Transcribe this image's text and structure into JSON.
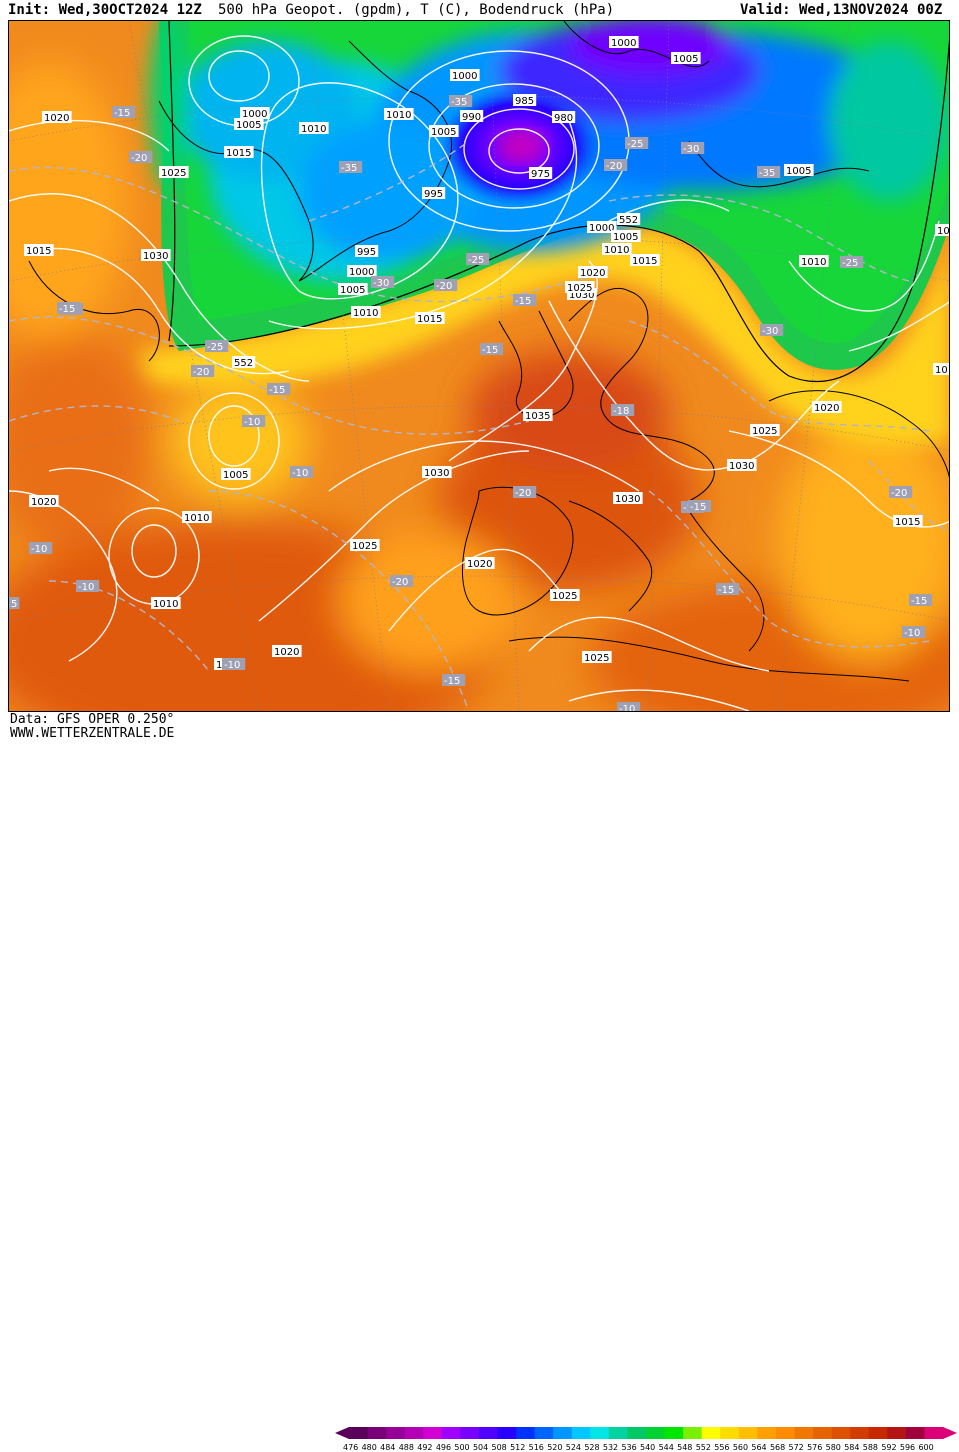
{
  "header": {
    "init": "Init: Wed,30OCT2024 12Z",
    "title": "500 hPa Geopot. (gpdm), T (C), Bodendruck (hPa)",
    "valid": "Valid: Wed,13NOV2024 00Z"
  },
  "footer": {
    "data_source": "Data: GFS OPER 0.250°",
    "website": "WWW.WETTERZENTRALE.DE"
  },
  "legend": {
    "ticks": [
      "476",
      "480",
      "484",
      "488",
      "492",
      "496",
      "500",
      "504",
      "508",
      "512",
      "516",
      "520",
      "524",
      "528",
      "532",
      "536",
      "540",
      "544",
      "548",
      "552",
      "556",
      "560",
      "564",
      "568",
      "572",
      "576",
      "580",
      "584",
      "588",
      "592",
      "596",
      "600"
    ],
    "colors": [
      "#5a005a",
      "#780078",
      "#960096",
      "#b400b4",
      "#d200d2",
      "#a000ff",
      "#7800ff",
      "#5000ff",
      "#2800ff",
      "#0032ff",
      "#0064ff",
      "#0096ff",
      "#00c8ff",
      "#00e6e6",
      "#00d2a0",
      "#00c864",
      "#00d232",
      "#00e600",
      "#78f000",
      "#ffff00",
      "#ffdc00",
      "#ffbe00",
      "#ffa000",
      "#ff8c00",
      "#f07800",
      "#e66400",
      "#dc5000",
      "#d23c00",
      "#c82800",
      "#b41414",
      "#a0003c",
      "#dc0078"
    ]
  },
  "pressure_labels": [
    "1000",
    "1005",
    "985",
    "980",
    "975",
    "1010",
    "990",
    "995",
    "1020",
    "1015",
    "1025",
    "1030",
    "1035",
    "552"
  ],
  "map_labels": [
    {
      "t": "1000",
      "c": "p"
    },
    {
      "t": "1005",
      "c": "p"
    },
    {
      "t": "1000",
      "c": "p"
    },
    {
      "t": "985",
      "c": "p"
    },
    {
      "t": "980",
      "c": "p"
    },
    {
      "t": "975",
      "c": "p"
    },
    {
      "t": "1020",
      "c": "p"
    },
    {
      "t": "-15",
      "c": "t"
    },
    {
      "t": "1000",
      "c": "p"
    },
    {
      "t": "1005",
      "c": "p"
    },
    {
      "t": "1010",
      "c": "p"
    },
    {
      "t": "990",
      "c": "p"
    },
    {
      "t": "1005",
      "c": "p"
    },
    {
      "t": "1010",
      "c": "p"
    },
    {
      "t": "-20",
      "c": "t"
    },
    {
      "t": "1015",
      "c": "p"
    },
    {
      "t": "1025",
      "c": "p"
    },
    {
      "t": "-35",
      "c": "t"
    },
    {
      "t": "-35",
      "c": "t"
    },
    {
      "t": "995",
      "c": "p"
    },
    {
      "t": "-25",
      "c": "t"
    },
    {
      "t": "-20",
      "c": "t"
    },
    {
      "t": "-30",
      "c": "t"
    },
    {
      "t": "-35",
      "c": "t"
    },
    {
      "t": "1005",
      "c": "p"
    },
    {
      "t": "1015",
      "c": "p"
    },
    {
      "t": "1030",
      "c": "p"
    },
    {
      "t": "995",
      "c": "p"
    },
    {
      "t": "1000",
      "c": "p"
    },
    {
      "t": "1005",
      "c": "p"
    },
    {
      "t": "-30",
      "c": "t"
    },
    {
      "t": "-20",
      "c": "t"
    },
    {
      "t": "-25",
      "c": "t"
    },
    {
      "t": "1010",
      "c": "p"
    },
    {
      "t": "1015",
      "c": "p"
    },
    {
      "t": "552",
      "c": "p"
    },
    {
      "t": "1000",
      "c": "p"
    },
    {
      "t": "1005",
      "c": "p"
    },
    {
      "t": "1010",
      "c": "p"
    },
    {
      "t": "1015",
      "c": "p"
    },
    {
      "t": "1020",
      "c": "p"
    },
    {
      "t": "1030",
      "c": "p"
    },
    {
      "t": "1025",
      "c": "p"
    },
    {
      "t": "-15",
      "c": "t"
    },
    {
      "t": "-15",
      "c": "t"
    },
    {
      "t": "1010",
      "c": "p"
    },
    {
      "t": "-25",
      "c": "t"
    },
    {
      "t": "-20",
      "c": "t"
    },
    {
      "t": "1015",
      "c": "p"
    },
    {
      "t": "-15",
      "c": "t"
    },
    {
      "t": "-30",
      "c": "t"
    },
    {
      "t": "-25",
      "c": "t"
    },
    {
      "t": "552",
      "c": "p"
    },
    {
      "t": "-20",
      "c": "t"
    },
    {
      "t": "-15",
      "c": "t"
    },
    {
      "t": "-10",
      "c": "t"
    },
    {
      "t": "1035",
      "c": "p"
    },
    {
      "t": "-18",
      "c": "t"
    },
    {
      "t": "1015",
      "c": "p"
    },
    {
      "t": "1020",
      "c": "p"
    },
    {
      "t": "1025",
      "c": "p"
    },
    {
      "t": "1005",
      "c": "p"
    },
    {
      "t": "1030",
      "c": "p"
    },
    {
      "t": "-10",
      "c": "t"
    },
    {
      "t": "1030",
      "c": "p"
    },
    {
      "t": "1020",
      "c": "p"
    },
    {
      "t": "-20",
      "c": "t"
    },
    {
      "t": "1030",
      "c": "p"
    },
    {
      "t": "-15",
      "c": "t"
    },
    {
      "t": "1010",
      "c": "p"
    },
    {
      "t": "1025",
      "c": "p"
    },
    {
      "t": "1015",
      "c": "p"
    },
    {
      "t": "-10",
      "c": "t"
    },
    {
      "t": "1020",
      "c": "p"
    },
    {
      "t": "-20",
      "c": "t"
    },
    {
      "t": "-10",
      "c": "t"
    },
    {
      "t": "1010",
      "c": "p"
    },
    {
      "t": "1025",
      "c": "p"
    },
    {
      "t": "-15",
      "c": "t"
    },
    {
      "t": "-15",
      "c": "t"
    },
    {
      "t": "-10",
      "c": "t"
    },
    {
      "t": "1020",
      "c": "p"
    },
    {
      "t": "1025",
      "c": "p"
    },
    {
      "t": "-15",
      "c": "t"
    },
    {
      "t": "1020",
      "c": "p"
    },
    {
      "t": "-10",
      "c": "t"
    },
    {
      "t": "5",
      "c": "t"
    },
    {
      "t": "-20",
      "c": "t"
    },
    {
      "t": "-15",
      "c": "t"
    },
    {
      "t": "-10",
      "c": "t"
    }
  ]
}
